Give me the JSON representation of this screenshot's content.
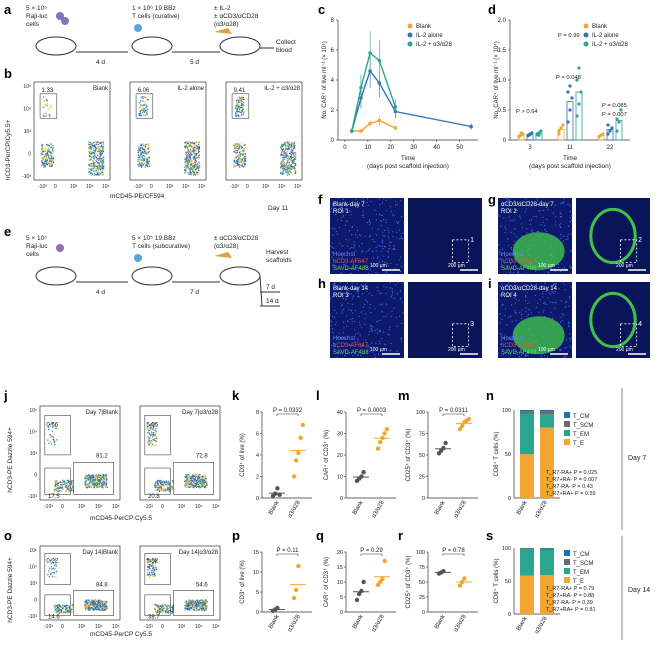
{
  "panels": {
    "a": "a",
    "b": "b",
    "c": "c",
    "d": "d",
    "e": "e",
    "f": "f",
    "g": "g",
    "h": "h",
    "i": "i",
    "j": "j",
    "k": "k",
    "l": "l",
    "m": "m",
    "n": "n",
    "o": "o",
    "p": "p",
    "q": "q",
    "r": "r",
    "s": "s"
  },
  "schematic_a": {
    "step1": "5 × 10⁵ Raji-luc cells",
    "step1_l1": "5 × 10⁵",
    "step1_l2": "Raji-luc",
    "step1_l3": "cells",
    "step2_l1": "1 × 10⁶ 19.BBz",
    "step2_l2": "T cells (curative)",
    "step3_l1": "± IL-2",
    "step3_l2": "± αCD3/αCD28",
    "step3_l3": "(α3/α28)",
    "step4_l1": "Collect",
    "step4_l2": "blood",
    "int1": "4 d",
    "int2": "5 d"
  },
  "schematic_e": {
    "step1_l1": "5 × 10⁵",
    "step1_l2": "Raji-luc",
    "step1_l3": "cells",
    "step2_l1": "5 × 10⁵ 19.BBz",
    "step2_l2": "T cells (subcurative)",
    "step3_l1": "± αCD3/αCD28",
    "step3_l2": "(α3/α28)",
    "step4_l1": "Harvest",
    "step4_l2": "scaffolds",
    "int1": "4 d",
    "int2": "7 d",
    "int3": "7 d",
    "int4": "14 d"
  },
  "flow_b": {
    "ylabel": "hCD3-PerCP/Cy5.5+",
    "xlabel": "mCD45-PE/CF594",
    "day": "Day 11",
    "plots": [
      {
        "title": "Blank",
        "gate": "1.33"
      },
      {
        "title": "IL-2 alone",
        "gate": "6.06"
      },
      {
        "title": "IL-2 + α3/α28",
        "gate": "9.41"
      }
    ],
    "yticks": [
      "10⁵",
      "10⁴",
      "10³",
      "0",
      "-10³"
    ],
    "xticks": [
      "-10³",
      "0",
      "10³",
      "10⁴",
      "10⁵"
    ]
  },
  "chart_data": [
    {
      "type": "line",
      "panel": "c",
      "ylabel": "No. CAR⁺ of live ml⁻¹ (× 10⁴)",
      "xlabel": "Time (days post scaffold injection)",
      "xlabel_l1": "Time",
      "xlabel_l2": "(days post scaffold injection)",
      "ylim": [
        0,
        8
      ],
      "x_ticks": [
        "0",
        "10",
        "20",
        "30",
        "40",
        "50"
      ],
      "y_ticks": [
        "0",
        "2",
        "4",
        "6",
        "8"
      ],
      "x": [
        3,
        7,
        11,
        15,
        22,
        55
      ],
      "series": [
        {
          "name": "Blank",
          "color": "#f2a531",
          "values": [
            0.6,
            0.6,
            1.1,
            1.3,
            0.8,
            null
          ]
        },
        {
          "name": "IL-2 alone",
          "color": "#2f74b5",
          "values": [
            0.6,
            2.8,
            4.6,
            3.8,
            1.9,
            0.9
          ]
        },
        {
          "name": "IL-2 + α3/α28",
          "color": "#2aa58f",
          "values": [
            0.6,
            3.5,
            5.8,
            5.3,
            2.2,
            null
          ]
        }
      ]
    },
    {
      "type": "scatter",
      "panel": "d",
      "ylabel": "No. CAR⁺ of live ml⁻¹ (× 10⁴)",
      "xlabel_l1": "Time",
      "xlabel_l2": "(days post scaffold injection)",
      "ylim": [
        0,
        2
      ],
      "y_ticks": [
        "0",
        "0.5",
        "1.0",
        "1.5",
        "2.0"
      ],
      "categories": [
        "3",
        "11",
        "22"
      ],
      "series": [
        {
          "name": "Blank",
          "color": "#f2a531",
          "values": [
            [
              0.05,
              0.08,
              0.1,
              0.06,
              0.12
            ],
            [
              0.15,
              0.2,
              0.25,
              0.1
            ],
            [
              0.05,
              0.08,
              0.1
            ]
          ]
        },
        {
          "name": "IL-2 alone",
          "color": "#2f74b5",
          "values": [
            [
              0.08,
              0.1,
              0.12,
              0.07,
              0.09
            ],
            [
              0.3,
              0.5,
              0.7,
              0.8,
              0.9
            ],
            [
              0.1,
              0.15,
              0.2,
              0.25
            ]
          ]
        },
        {
          "name": "IL-2 + α3/α28",
          "color": "#2aa58f",
          "values": [
            [
              0.1,
              0.12,
              0.15,
              0.09,
              0.08
            ],
            [
              0.4,
              0.6,
              0.8,
              1.0,
              1.2
            ],
            [
              0.15,
              0.3,
              0.5,
              0.35
            ]
          ]
        }
      ],
      "annotations": [
        "P > 0.64",
        "P = 0.99",
        "P = 0.048",
        "P = 0.085",
        "P = 0.007"
      ]
    }
  ],
  "micro": {
    "f": {
      "title_l1": "Blank-day 7",
      "title_l2": "ROI 1",
      "l1": "Hoechst",
      "l2": "hCD3-AF647",
      "l3": "SAVD-AF488",
      "s1": "100 µm",
      "s2": "200 µm",
      "roi": "1"
    },
    "g": {
      "title_l1": "αCD3/αCD28-day 7",
      "title_l2": "ROI 2",
      "l1": "Hoechst",
      "l2": "hCD3-AF647",
      "l3": "SAVD-AF488",
      "s1": "100 µm",
      "s2": "200 µm",
      "roi": "2"
    },
    "h": {
      "title_l1": "Blank-day 14",
      "title_l2": "ROI 3",
      "l1": "Hoechst",
      "l2": "hCD3-AF647",
      "l3": "SAVD-AF488",
      "s1": "100 µm",
      "s2": "200 µm",
      "roi": "3"
    },
    "i": {
      "title_l1": "αCD3/αCD28-day 14",
      "title_l2": "ROI 4",
      "l1": "Hoechst",
      "l2": "hCD3-AF647",
      "l3": "SAVD-AF488",
      "s1": "100 µm",
      "s2": "200 µm",
      "roi": "4"
    }
  },
  "flow_j": {
    "ylabel": "hCD3-PE Dazzle 594+",
    "xlabel": "mCD45-PerCP Cy5.5",
    "plots": [
      {
        "title": "Day 7|Blank",
        "tl": "0.66",
        "tr": "81.2",
        "bl": "17.5"
      },
      {
        "title": "Day 7|α3/α28",
        "tl": "5.05",
        "tr": "72.8",
        "bl": "20.8"
      }
    ],
    "yticks": [
      "10⁵",
      "10⁴",
      "10³",
      "0",
      "-10³"
    ],
    "xticks": [
      "-10³",
      "0",
      "10³",
      "10⁴",
      "10⁵"
    ]
  },
  "flow_o": {
    "ylabel": "hCD3-PE Dazzle 594+",
    "xlabel": "mCD45-PerCP Cy5.5",
    "plots": [
      {
        "title": "Day 14|Blank",
        "tl": "0.22",
        "tr": "84.8",
        "bl": "14.6"
      },
      {
        "title": "Day 14|α3/α28",
        "tl": "5.52",
        "tr": "54.6",
        "bl": "38.7"
      }
    ],
    "yticks": [
      "10⁵",
      "10⁴",
      "10³",
      "0",
      "-10³"
    ],
    "xticks": [
      "-10³",
      "0",
      "10³",
      "10⁴",
      "10⁵"
    ]
  },
  "dots": {
    "k": {
      "ylabel": "CD3⁺ of live (%)",
      "p": "P = 0.0332",
      "yticks": [
        "0",
        "2",
        "4",
        "6",
        "8"
      ],
      "ymax": 8,
      "blank": [
        0.2,
        0.4,
        0.9,
        0.3
      ],
      "treat": [
        2.0,
        3.5,
        4.2,
        5.6,
        6.8
      ],
      "cat": [
        "Blank",
        "α3/α28"
      ]
    },
    "l": {
      "ylabel": "CAR⁺ of CD3⁺ (%)",
      "p": "P = 0.0003",
      "yticks": [
        "0",
        "10",
        "20",
        "30",
        "40"
      ],
      "ymax": 40,
      "blank": [
        8,
        9,
        10,
        12
      ],
      "treat": [
        23,
        26,
        28,
        30,
        32
      ],
      "cat": [
        "Blank",
        "α3/α28"
      ]
    },
    "m": {
      "ylabel": "CD25⁺ of CD3⁺ (%)",
      "p": "P = 0.0311",
      "yticks": [
        "0",
        "25",
        "50",
        "75",
        "100"
      ],
      "ymax": 100,
      "blank": [
        52,
        55,
        58,
        64
      ],
      "treat": [
        80,
        84,
        88,
        90,
        92
      ],
      "cat": [
        "Blank",
        "α3/α28"
      ]
    },
    "p": {
      "ylabel": "CD3⁺ of live (%)",
      "p": "P = 0.11",
      "yticks": [
        "0",
        "5",
        "10",
        "15"
      ],
      "ymax": 15,
      "blank": [
        0.3,
        0.6,
        1.0
      ],
      "treat": [
        3.5,
        5.5,
        11.5
      ],
      "cat": [
        "Blank",
        "α3/α28"
      ]
    },
    "q": {
      "ylabel": "CAR⁺ of CD3⁺ (%)",
      "p": "P = 0.29",
      "yticks": [
        "0",
        "5",
        "10",
        "15",
        "20"
      ],
      "ymax": 20,
      "blank": [
        4,
        6,
        7,
        10
      ],
      "treat": [
        9,
        10,
        11,
        17
      ],
      "cat": [
        "Blank",
        "α3/α28"
      ]
    },
    "r": {
      "ylabel": "CD25⁺ of CD3⁺ (%)",
      "p": "P = 0.78",
      "yticks": [
        "0",
        "25",
        "50",
        "75",
        "100"
      ],
      "ymax": 100,
      "blank": [
        64,
        66,
        68
      ],
      "treat": [
        44,
        50,
        56
      ],
      "cat": [
        "Blank",
        "α3/α28"
      ]
    }
  },
  "stack_n": {
    "ylabel": "CD8⁺ T cells (%)",
    "yticks": [
      "0",
      "50",
      "100"
    ],
    "cat": [
      "Blank",
      "α3/α28"
    ],
    "legend": [
      "T_CM",
      "T_SCM",
      "T_EM",
      "T_E"
    ],
    "colors": [
      "#1f6fb0",
      "#6b6b6b",
      "#2aa58f",
      "#f2a531"
    ],
    "blank": [
      2,
      2,
      46,
      50
    ],
    "treat": [
      2,
      3,
      15,
      80
    ],
    "pvals": [
      "T_R7-RA+ P = 0.025",
      "T_R7+RA- P = 0.007",
      "T_R7-RA- P = 0.43",
      "T_R7+RA+ P = 0.59"
    ],
    "day": "Day 7"
  },
  "stack_s": {
    "ylabel": "CD8⁺ T cells (%)",
    "yticks": [
      "0",
      "50",
      "100"
    ],
    "cat": [
      "Blank",
      "α3/α28"
    ],
    "legend": [
      "T_CM",
      "T_SCM",
      "T_EM",
      "T_E"
    ],
    "colors": [
      "#1f6fb0",
      "#6b6b6b",
      "#2aa58f",
      "#f2a531"
    ],
    "blank": [
      1,
      1,
      40,
      58
    ],
    "treat": [
      1,
      2,
      38,
      59
    ],
    "pvals": [
      "T_R7-RA+ P = 0.79",
      "T_R7+RA- P = 0.88",
      "T_R7-RA- P = 0.39",
      "T_R7+RA+ P = 0.81"
    ],
    "day": "Day 14"
  }
}
